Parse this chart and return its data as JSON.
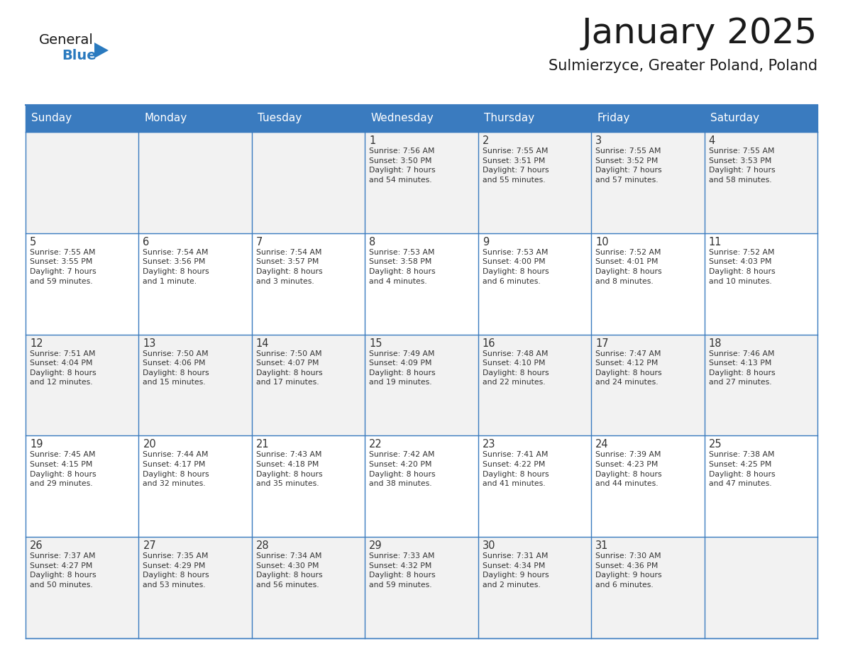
{
  "title": "January 2025",
  "subtitle": "Sulmierzyce, Greater Poland, Poland",
  "header_bg": "#3a7bbf",
  "header_text_color": "#ffffff",
  "cell_bg_white": "#ffffff",
  "cell_bg_gray": "#f2f2f2",
  "border_color": "#3a7bbf",
  "text_color": "#333333",
  "days_of_week": [
    "Sunday",
    "Monday",
    "Tuesday",
    "Wednesday",
    "Thursday",
    "Friday",
    "Saturday"
  ],
  "weeks": [
    [
      {
        "day": "",
        "info": ""
      },
      {
        "day": "",
        "info": ""
      },
      {
        "day": "",
        "info": ""
      },
      {
        "day": "1",
        "info": "Sunrise: 7:56 AM\nSunset: 3:50 PM\nDaylight: 7 hours\nand 54 minutes."
      },
      {
        "day": "2",
        "info": "Sunrise: 7:55 AM\nSunset: 3:51 PM\nDaylight: 7 hours\nand 55 minutes."
      },
      {
        "day": "3",
        "info": "Sunrise: 7:55 AM\nSunset: 3:52 PM\nDaylight: 7 hours\nand 57 minutes."
      },
      {
        "day": "4",
        "info": "Sunrise: 7:55 AM\nSunset: 3:53 PM\nDaylight: 7 hours\nand 58 minutes."
      }
    ],
    [
      {
        "day": "5",
        "info": "Sunrise: 7:55 AM\nSunset: 3:55 PM\nDaylight: 7 hours\nand 59 minutes."
      },
      {
        "day": "6",
        "info": "Sunrise: 7:54 AM\nSunset: 3:56 PM\nDaylight: 8 hours\nand 1 minute."
      },
      {
        "day": "7",
        "info": "Sunrise: 7:54 AM\nSunset: 3:57 PM\nDaylight: 8 hours\nand 3 minutes."
      },
      {
        "day": "8",
        "info": "Sunrise: 7:53 AM\nSunset: 3:58 PM\nDaylight: 8 hours\nand 4 minutes."
      },
      {
        "day": "9",
        "info": "Sunrise: 7:53 AM\nSunset: 4:00 PM\nDaylight: 8 hours\nand 6 minutes."
      },
      {
        "day": "10",
        "info": "Sunrise: 7:52 AM\nSunset: 4:01 PM\nDaylight: 8 hours\nand 8 minutes."
      },
      {
        "day": "11",
        "info": "Sunrise: 7:52 AM\nSunset: 4:03 PM\nDaylight: 8 hours\nand 10 minutes."
      }
    ],
    [
      {
        "day": "12",
        "info": "Sunrise: 7:51 AM\nSunset: 4:04 PM\nDaylight: 8 hours\nand 12 minutes."
      },
      {
        "day": "13",
        "info": "Sunrise: 7:50 AM\nSunset: 4:06 PM\nDaylight: 8 hours\nand 15 minutes."
      },
      {
        "day": "14",
        "info": "Sunrise: 7:50 AM\nSunset: 4:07 PM\nDaylight: 8 hours\nand 17 minutes."
      },
      {
        "day": "15",
        "info": "Sunrise: 7:49 AM\nSunset: 4:09 PM\nDaylight: 8 hours\nand 19 minutes."
      },
      {
        "day": "16",
        "info": "Sunrise: 7:48 AM\nSunset: 4:10 PM\nDaylight: 8 hours\nand 22 minutes."
      },
      {
        "day": "17",
        "info": "Sunrise: 7:47 AM\nSunset: 4:12 PM\nDaylight: 8 hours\nand 24 minutes."
      },
      {
        "day": "18",
        "info": "Sunrise: 7:46 AM\nSunset: 4:13 PM\nDaylight: 8 hours\nand 27 minutes."
      }
    ],
    [
      {
        "day": "19",
        "info": "Sunrise: 7:45 AM\nSunset: 4:15 PM\nDaylight: 8 hours\nand 29 minutes."
      },
      {
        "day": "20",
        "info": "Sunrise: 7:44 AM\nSunset: 4:17 PM\nDaylight: 8 hours\nand 32 minutes."
      },
      {
        "day": "21",
        "info": "Sunrise: 7:43 AM\nSunset: 4:18 PM\nDaylight: 8 hours\nand 35 minutes."
      },
      {
        "day": "22",
        "info": "Sunrise: 7:42 AM\nSunset: 4:20 PM\nDaylight: 8 hours\nand 38 minutes."
      },
      {
        "day": "23",
        "info": "Sunrise: 7:41 AM\nSunset: 4:22 PM\nDaylight: 8 hours\nand 41 minutes."
      },
      {
        "day": "24",
        "info": "Sunrise: 7:39 AM\nSunset: 4:23 PM\nDaylight: 8 hours\nand 44 minutes."
      },
      {
        "day": "25",
        "info": "Sunrise: 7:38 AM\nSunset: 4:25 PM\nDaylight: 8 hours\nand 47 minutes."
      }
    ],
    [
      {
        "day": "26",
        "info": "Sunrise: 7:37 AM\nSunset: 4:27 PM\nDaylight: 8 hours\nand 50 minutes."
      },
      {
        "day": "27",
        "info": "Sunrise: 7:35 AM\nSunset: 4:29 PM\nDaylight: 8 hours\nand 53 minutes."
      },
      {
        "day": "28",
        "info": "Sunrise: 7:34 AM\nSunset: 4:30 PM\nDaylight: 8 hours\nand 56 minutes."
      },
      {
        "day": "29",
        "info": "Sunrise: 7:33 AM\nSunset: 4:32 PM\nDaylight: 8 hours\nand 59 minutes."
      },
      {
        "day": "30",
        "info": "Sunrise: 7:31 AM\nSunset: 4:34 PM\nDaylight: 9 hours\nand 2 minutes."
      },
      {
        "day": "31",
        "info": "Sunrise: 7:30 AM\nSunset: 4:36 PM\nDaylight: 9 hours\nand 6 minutes."
      },
      {
        "day": "",
        "info": ""
      }
    ]
  ],
  "logo_color_general": "#1a1a1a",
  "logo_color_blue": "#2a7abf",
  "logo_triangle_color": "#2a7abf",
  "fig_width": 11.88,
  "fig_height": 9.18,
  "dpi": 100
}
